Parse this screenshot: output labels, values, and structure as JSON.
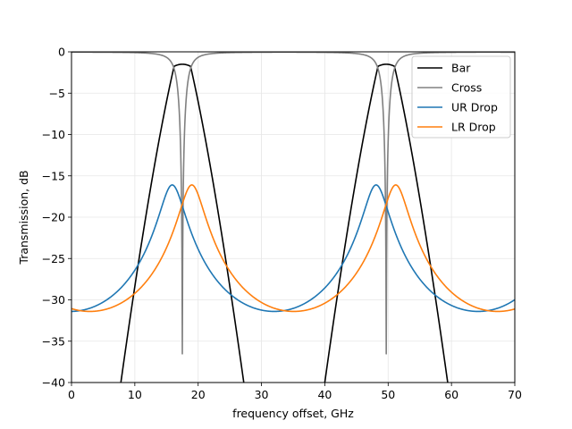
{
  "chart_data": {
    "type": "line",
    "title": "",
    "xlabel": "frequency offset, GHz",
    "ylabel": "Transmission, dB",
    "xlim": [
      0,
      70
    ],
    "ylim": [
      -40,
      0
    ],
    "xticks": [
      0,
      10,
      20,
      30,
      40,
      50,
      60,
      70
    ],
    "yticks": [
      0,
      -5,
      -10,
      -15,
      -20,
      -25,
      -30,
      -35,
      -40
    ],
    "grid": true,
    "legend_position": "top-right",
    "fsr_ghz": 32.2,
    "series": [
      {
        "name": "Bar",
        "color": "#000000",
        "peak_db": -1.5,
        "center_offsets": [
          17.5
        ],
        "slope_db_per_ghz": 3.35
      },
      {
        "name": "Cross",
        "color": "#808080",
        "baseline_db": -0.02,
        "notch_db": -36.5,
        "center_offsets": [
          17.5
        ],
        "notch_half_width_ghz": 1.0
      },
      {
        "name": "UR Drop",
        "color": "#1f77b4",
        "peak_db": -16.1,
        "min_db": -31.4,
        "center_offsets": [
          15.9
        ]
      },
      {
        "name": "LR Drop",
        "color": "#ff7f0e",
        "peak_db": -16.1,
        "min_db": -31.4,
        "center_offsets": [
          19.0
        ]
      }
    ]
  }
}
